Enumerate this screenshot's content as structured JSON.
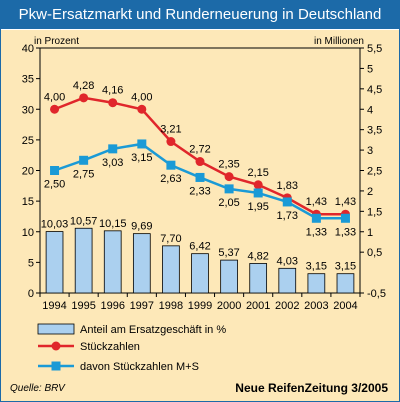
{
  "title": "Pkw-Ersatzmarkt und Runderneuerung in Deutschland",
  "source": "Quelle: BRV",
  "credit": "Neue ReifenZeitung 3/2005",
  "colors": {
    "header": "#1c6aa8",
    "panel": "#fde8b8",
    "bar": "#abd0ef",
    "red": "#e0262b",
    "blue": "#1a9ad6"
  },
  "chart_data": {
    "type": "bar",
    "categories": [
      "1994",
      "1995",
      "1996",
      "1997",
      "1998",
      "1999",
      "2000",
      "2001",
      "2002",
      "2003",
      "2004"
    ],
    "left_axis": {
      "label": "in Prozent",
      "ticks": [
        "0",
        "5",
        "10",
        "15",
        "20",
        "25",
        "30",
        "35",
        "40"
      ],
      "ylim": [
        0,
        40
      ]
    },
    "right_axis": {
      "label": "in Millionen",
      "ticks": [
        "-0,5",
        "0,5",
        "1",
        "1,5",
        "2",
        "2,5",
        "3",
        "3,5",
        "4",
        "4,5",
        "5",
        "5,5"
      ],
      "ylim": [
        -0.5,
        5.5
      ]
    },
    "series": [
      {
        "name": "Anteil am Ersatzgeschäft in %",
        "type": "bar",
        "axis": "left",
        "values": [
          10.03,
          10.57,
          10.15,
          9.69,
          7.7,
          6.42,
          5.37,
          4.82,
          4.03,
          3.15,
          3.15
        ],
        "labels": [
          "10,03",
          "10,57",
          "10,15",
          "9,69",
          "7,70",
          "6,42",
          "5,37",
          "4,82",
          "4,03",
          "3,15",
          "3,15"
        ]
      },
      {
        "name": "Stückzahlen",
        "type": "line",
        "axis": "right",
        "values": [
          4.0,
          4.28,
          4.16,
          4.0,
          3.21,
          2.72,
          2.35,
          2.15,
          1.83,
          1.43,
          1.43
        ],
        "labels": [
          "4,00",
          "4,28",
          "4,16",
          "4,00",
          "3,21",
          "2,72",
          "2,35",
          "2,15",
          "1,83",
          "1,43",
          "1,43"
        ]
      },
      {
        "name": "davon Stückzahlen M+S",
        "type": "line",
        "axis": "right",
        "values": [
          2.5,
          2.75,
          3.03,
          3.15,
          2.63,
          2.33,
          2.05,
          1.95,
          1.73,
          1.33,
          1.33
        ],
        "labels": [
          "2,50",
          "2,75",
          "3,03",
          "3,15",
          "2,63",
          "2,33",
          "2,05",
          "1,95",
          "1,73",
          "1,33",
          "1,33"
        ]
      }
    ]
  }
}
